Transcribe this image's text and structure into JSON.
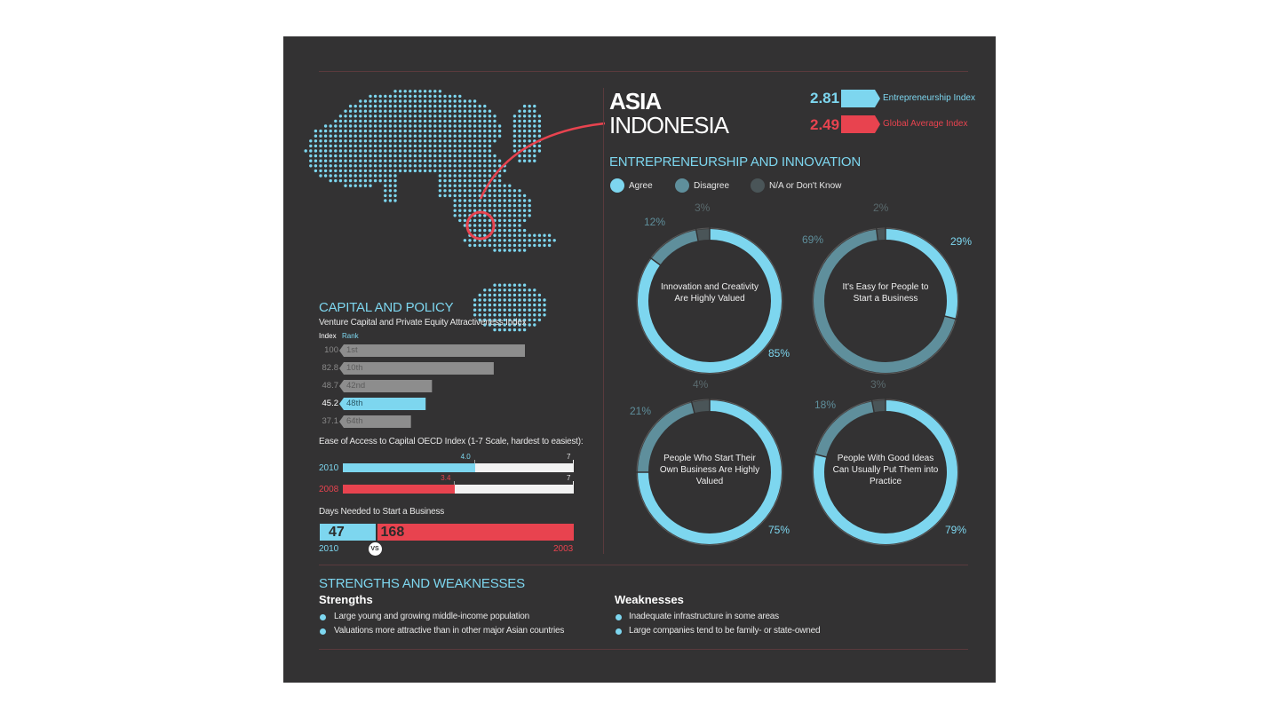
{
  "region": "ASIA",
  "country": "INDONESIA",
  "indices": {
    "entrepreneurship": {
      "value": "2.81",
      "label": "Entrepreneurship Index",
      "color": "#7dd6ef"
    },
    "global": {
      "value": "2.49",
      "label": "Global Average Index",
      "color": "#e8434f"
    }
  },
  "innovation": {
    "title": "ENTREPRENEURSHIP AND INNOVATION",
    "legend": [
      {
        "label": "Agree",
        "color": "#7dd6ef"
      },
      {
        "label": "Disagree",
        "color": "#5f8f9c"
      },
      {
        "label": "N/A or Don't Know",
        "color": "#4a5558"
      }
    ]
  },
  "chart_data": [
    {
      "type": "pie",
      "title": "Innovation and Creativity Are Highly Valued",
      "categories": [
        "Agree",
        "Disagree",
        "N/A or Don't Know"
      ],
      "values": [
        85,
        12,
        3
      ],
      "labels": [
        "85%",
        "12%",
        "3%"
      ]
    },
    {
      "type": "pie",
      "title": "It's Easy for People to Start a Business",
      "categories": [
        "Agree",
        "Disagree",
        "N/A or Don't Know"
      ],
      "values": [
        29,
        69,
        2
      ],
      "labels": [
        "29%",
        "69%",
        "2%"
      ]
    },
    {
      "type": "pie",
      "title": "People Who Start Their Own Business Are Highly Valued",
      "categories": [
        "Agree",
        "Disagree",
        "N/A or Don't Know"
      ],
      "values": [
        75,
        21,
        4
      ],
      "labels": [
        "75%",
        "21%",
        "4%"
      ]
    },
    {
      "type": "pie",
      "title": "People With Good Ideas Can Usually Put Them into Practice",
      "categories": [
        "Agree",
        "Disagree",
        "N/A or Don't Know"
      ],
      "values": [
        79,
        18,
        3
      ],
      "labels": [
        "79%",
        "18%",
        "3%"
      ]
    },
    {
      "type": "bar",
      "title": "Venture Capital and Private Equity Attractiveness Index",
      "headers": [
        "Index",
        "Rank"
      ],
      "values": [
        100,
        82.8,
        48.7,
        45.2,
        37.1
      ],
      "value_labels": [
        "100",
        "82.8",
        "48.7",
        "45.2",
        "37.1"
      ],
      "categories": [
        "1st",
        "10th",
        "42nd",
        "48th",
        "64th"
      ],
      "highlight_index": 3
    },
    {
      "type": "bar",
      "title": "Ease of Access to Capital OECD Index (1-7 Scale, hardest to easiest):",
      "categories": [
        "2010",
        "2008"
      ],
      "values": [
        4.0,
        3.4
      ],
      "value_labels": [
        "4.0",
        "3.4"
      ],
      "max": 7,
      "max_label": "7"
    },
    {
      "type": "bar",
      "title": "Days Needed to Start a Business",
      "categories": [
        "2010",
        "2003"
      ],
      "values": [
        47,
        168
      ],
      "value_labels": [
        "47",
        "168"
      ],
      "vs": "VS"
    }
  ],
  "capital": {
    "title": "CAPITAL AND POLICY"
  },
  "sw": {
    "title": "STRENGTHS AND WEAKNESSES",
    "strengths_title": "Strengths",
    "weaknesses_title": "Weaknesses",
    "strengths": [
      "Large young and growing middle-income population",
      "Valuations more attractive than in other major Asian countries"
    ],
    "weaknesses": [
      "Inadequate infrastructure in some areas",
      "Large companies tend to be family- or state-owned"
    ]
  }
}
